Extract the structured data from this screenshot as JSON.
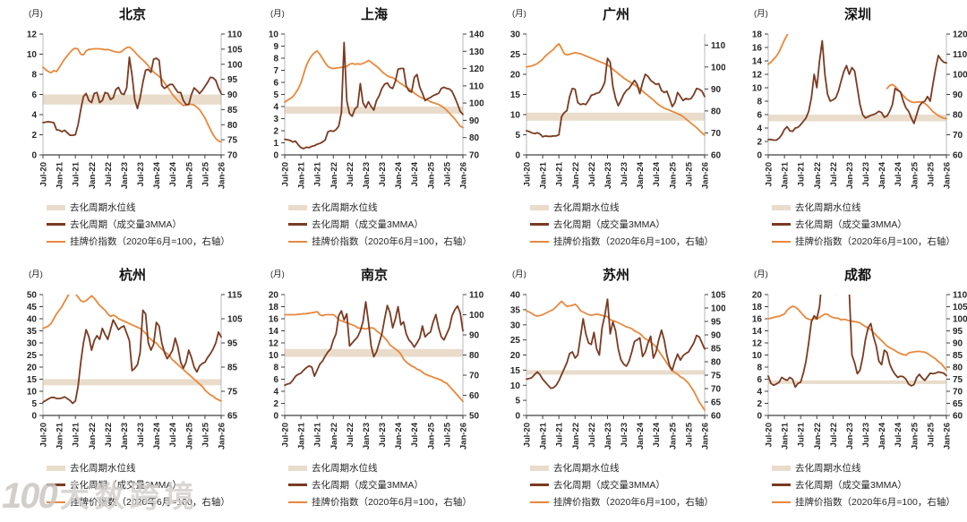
{
  "unit_label": "(月)",
  "colors": {
    "background": "#ffffff",
    "cycle_line": "#7a3b22",
    "price_line": "#e8883c",
    "band": "#e9dccb",
    "axis_text": "#262626",
    "axis_line": "#b9b9b9",
    "baseline": "#404040"
  },
  "legend": {
    "band": "去化周期水位线",
    "cycle": "去化周期（成交量3MMA）",
    "price": "挂牌价指数（2020年6月=100，右轴）"
  },
  "watermark": {
    "logo": "100",
    "text": "大数跨境"
  },
  "x_axis": {
    "tick_labels": [
      "Jul-20",
      "Jan-21",
      "Jul-21",
      "Jan-22",
      "Jul-22",
      "Jan-23",
      "Jul-23",
      "Jan-24",
      "Jul-24",
      "Jan-25",
      "Jul-25",
      "Jan-26"
    ],
    "tick_months": [
      0,
      6,
      12,
      18,
      24,
      30,
      36,
      42,
      48,
      54,
      60,
      66
    ],
    "total_months": 66
  },
  "chart_data": [
    {
      "id": "beijing",
      "city": "北京",
      "type": "line",
      "left_axis": {
        "min": 0,
        "max": 12,
        "step": 2
      },
      "right_axis": {
        "min": 70,
        "max": 110,
        "step": 5,
        "scale_max": 110
      },
      "band": [
        5,
        6
      ],
      "cycle": [
        3.2,
        3.25,
        3.3,
        3.25,
        3.2,
        2.5,
        2.45,
        2.3,
        2.45,
        2.2,
        1.95,
        1.95,
        2.0,
        3.0,
        4.5,
        5.8,
        6.1,
        5.4,
        5.2,
        6.1,
        6.2,
        5.2,
        5.4,
        6.2,
        6.1,
        5.5,
        5.65,
        6.5,
        6.7,
        6.1,
        6.0,
        6.65,
        9.7,
        7.9,
        5.5,
        4.6,
        5.65,
        7.2,
        8.4,
        8.5,
        8.2,
        9.5,
        9.6,
        9.4,
        6.9,
        6.6,
        6.8,
        7.0,
        7.0,
        6.6,
        6.2,
        6.2,
        5.4,
        5.0,
        5.0,
        6.0,
        6.65,
        6.4,
        6.1,
        6.4,
        6.8,
        7.2,
        7.7,
        7.65,
        7.4,
        6.65,
        6.1
      ],
      "price": [
        99,
        98.2,
        97.6,
        97.2,
        97.9,
        97.6,
        98.9,
        100.3,
        101.7,
        102.8,
        103.9,
        104.9,
        105.3,
        105,
        103.3,
        103.1,
        104.4,
        104.9,
        105,
        105.1,
        105.1,
        105.1,
        105,
        104.8,
        104.9,
        104.6,
        104.3,
        104.1,
        103.9,
        104.1,
        104.9,
        105.5,
        105.7,
        105,
        104.1,
        103.1,
        102.2,
        101.4,
        100.5,
        99.5,
        98.4,
        97.4,
        96.7,
        96,
        95.1,
        93.8,
        92.7,
        91.3,
        90,
        88.9,
        87.9,
        87.1,
        86.3,
        86.5,
        86.9,
        86.7,
        86.5,
        85.8,
        85,
        83.6,
        82.2,
        80.3,
        78.4,
        76.7,
        75.4,
        74.6,
        74.3
      ]
    },
    {
      "id": "shanghai",
      "city": "上海",
      "type": "line",
      "left_axis": {
        "min": 0,
        "max": 10,
        "step": 1
      },
      "right_axis": {
        "min": 70,
        "max": 140,
        "step": 10,
        "scale_max": 140
      },
      "band": [
        3.4,
        4.0
      ],
      "cycle": [
        1.3,
        1.25,
        1.2,
        1.07,
        1.14,
        0.83,
        0.6,
        0.52,
        0.64,
        0.6,
        0.71,
        0.76,
        0.88,
        0.95,
        1.07,
        1.24,
        1.9,
        2.0,
        1.95,
        2.1,
        2.38,
        3.5,
        9.3,
        4.5,
        3.4,
        3.2,
        3.8,
        4.0,
        5.9,
        4.3,
        3.9,
        4.4,
        4.0,
        3.7,
        4.5,
        4.9,
        5.5,
        5.85,
        5.95,
        5.6,
        5.5,
        6.1,
        7.1,
        7.15,
        7.15,
        5.7,
        5.3,
        5.2,
        6.4,
        6.65,
        5.6,
        5.1,
        4.5,
        4.65,
        4.75,
        4.9,
        5.0,
        5.1,
        5.5,
        5.6,
        5.5,
        5.45,
        5.25,
        4.75,
        4.2,
        3.6,
        3.35
      ],
      "price": [
        100.5,
        101.7,
        102.5,
        103.7,
        105.8,
        108.3,
        111.7,
        116.7,
        121.7,
        125,
        127.5,
        129.2,
        130.2,
        128.3,
        125.8,
        123.3,
        121.3,
        120.3,
        120,
        120.3,
        120.5,
        120.7,
        120.8,
        121.3,
        122.5,
        123,
        122.5,
        122.8,
        122.5,
        123,
        123.7,
        124.7,
        123.7,
        122.5,
        121.3,
        120,
        118.3,
        117,
        115.8,
        115,
        114.7,
        113.7,
        112.5,
        111.3,
        110.3,
        109.2,
        108.3,
        107,
        105.8,
        104.7,
        103.7,
        102.8,
        102.2,
        101.7,
        100.8,
        100.3,
        99.7,
        99.2,
        98.3,
        97.3,
        95.8,
        94.2,
        92.5,
        90.8,
        88.7,
        86.7,
        85.8
      ]
    },
    {
      "id": "guangzhou",
      "city": "广州",
      "type": "line",
      "left_axis": {
        "min": 0,
        "max": 30,
        "step": 5
      },
      "right_axis": {
        "min": 60,
        "max": 110,
        "step": 10,
        "scale_max": 115
      },
      "band": [
        8.5,
        10.5
      ],
      "cycle": [
        6.0,
        5.8,
        5.5,
        5.3,
        5.5,
        5.2,
        4.5,
        4.7,
        4.6,
        4.6,
        4.7,
        4.7,
        5.0,
        9.5,
        10.5,
        11.0,
        14.5,
        16.5,
        16.3,
        13.0,
        12.5,
        12.7,
        12.5,
        13.5,
        14.8,
        15.0,
        15.3,
        15.5,
        16.5,
        18.0,
        24.0,
        23.0,
        17.0,
        14.0,
        12.2,
        13.5,
        15.0,
        16.0,
        16.5,
        17.5,
        18.5,
        17.5,
        15.2,
        18.0,
        20.0,
        19.5,
        18.5,
        18.0,
        17.5,
        17.7,
        16.0,
        15.5,
        15.8,
        14.0,
        12.0,
        13.0,
        15.5,
        14.5,
        13.5,
        14.0,
        13.8,
        14.0,
        15.0,
        16.5,
        16.3,
        15.8,
        14.5
      ],
      "price": [
        100,
        100.3,
        100.5,
        101,
        101.5,
        102.5,
        103.5,
        105,
        106,
        107,
        108,
        109.5,
        110.5,
        108.5,
        106,
        105.5,
        105.8,
        106.2,
        106.5,
        106.3,
        106,
        105.5,
        105,
        104.5,
        104,
        103.5,
        103,
        102.5,
        102,
        101.5,
        101,
        100,
        99,
        98,
        97,
        96,
        95,
        94.2,
        93.4,
        92.6,
        91.8,
        91,
        90.2,
        89,
        88,
        87,
        86,
        85,
        83.8,
        82.8,
        82,
        81.3,
        80.8,
        80.3,
        79.8,
        79.3,
        78.8,
        78.2,
        77.4,
        76.4,
        75.4,
        74.4,
        73.4,
        72.4,
        71.2,
        70,
        69
      ]
    },
    {
      "id": "shenzhen",
      "city": "深圳",
      "type": "line",
      "left_axis": {
        "min": 0,
        "max": 18,
        "step": 2
      },
      "right_axis": {
        "min": 60,
        "max": 120,
        "step": 10,
        "scale_max": 120
      },
      "band": [
        5,
        6
      ],
      "cycle": [
        2.3,
        2.3,
        2.2,
        2.2,
        2.5,
        3.0,
        3.8,
        4.2,
        3.6,
        3.5,
        4.0,
        4.1,
        4.5,
        5.0,
        5.5,
        6.5,
        8.5,
        12.0,
        10.0,
        14.0,
        17.0,
        12.0,
        9.0,
        8.0,
        8.2,
        8.5,
        9.5,
        11.0,
        12.4,
        13.3,
        12.0,
        13.0,
        12.5,
        10.0,
        7.5,
        6.0,
        5.5,
        5.7,
        5.9,
        6.0,
        6.2,
        6.5,
        6.3,
        5.6,
        5.8,
        6.5,
        7.5,
        9.9,
        9.6,
        9.4,
        8.0,
        7.0,
        6.5,
        5.5,
        4.7,
        6.0,
        7.3,
        7.8,
        8.0,
        8.7,
        8.0,
        10.5,
        12.8,
        14.8,
        14.2,
        13.8,
        13.7
      ],
      "price": [
        105,
        106,
        107.5,
        109,
        111,
        114,
        117,
        119.5,
        122,
        null,
        null,
        null,
        null,
        null,
        null,
        null,
        null,
        null,
        null,
        null,
        null,
        null,
        null,
        null,
        null,
        null,
        null,
        null,
        null,
        null,
        null,
        null,
        null,
        null,
        null,
        null,
        null,
        null,
        null,
        null,
        null,
        null,
        null,
        null,
        93,
        94.5,
        95,
        94,
        92.5,
        91,
        89.5,
        88,
        87,
        86.3,
        86,
        86.2,
        86.3,
        86.2,
        85.5,
        84.5,
        83,
        81.5,
        80.5,
        79.5,
        78.8,
        78.2,
        78
      ]
    },
    {
      "id": "hangzhou",
      "city": "杭州",
      "type": "line",
      "left_axis": {
        "min": 0,
        "max": 50,
        "step": 5
      },
      "right_axis": {
        "min": 65,
        "max": 115,
        "step": 10,
        "scale_max": 115
      },
      "band": [
        12.5,
        15
      ],
      "cycle": [
        5.5,
        6.2,
        6.8,
        7.4,
        7.5,
        7.0,
        7.0,
        7.2,
        7.7,
        7.0,
        6.2,
        5.0,
        6.0,
        12.0,
        22.0,
        30.0,
        35.5,
        32.5,
        27.0,
        31.0,
        33.0,
        31.5,
        36.0,
        33.5,
        31.5,
        35.5,
        39.5,
        37.5,
        35.5,
        36.5,
        37.0,
        34.0,
        31.0,
        18.5,
        19.5,
        21.0,
        26.0,
        43.5,
        42.0,
        30.0,
        27.0,
        29.5,
        38.5,
        37.0,
        30.0,
        26.0,
        23.5,
        25.0,
        27.0,
        32.0,
        28.0,
        22.0,
        19.5,
        22.0,
        27.0,
        24.0,
        20.0,
        18.0,
        20.5,
        21.5,
        22.0,
        24.0,
        25.5,
        27.5,
        30.0,
        34.5,
        32.5
      ],
      "price": [
        101,
        101.5,
        102,
        103,
        105,
        107,
        108.5,
        110,
        112,
        114,
        116,
        116.5,
        115.5,
        114,
        112.5,
        112,
        112.5,
        113.5,
        114.5,
        113.5,
        112,
        110.5,
        109.5,
        108.5,
        107,
        106,
        106.5,
        106,
        105,
        104.5,
        104,
        103.5,
        103,
        102.5,
        102,
        101.5,
        101,
        100,
        99,
        97.5,
        96.5,
        95.5,
        95,
        93.5,
        92.5,
        91.5,
        90.5,
        89.5,
        88,
        87,
        86,
        85,
        84,
        83,
        82,
        81,
        80,
        79,
        78,
        77,
        75.5,
        74.5,
        73.5,
        73,
        72,
        71.5,
        71
      ]
    },
    {
      "id": "nanjing",
      "city": "南京",
      "type": "line",
      "left_axis": {
        "min": 0,
        "max": 20,
        "step": 2
      },
      "right_axis": {
        "min": 50,
        "max": 110,
        "step": 10,
        "scale_max": 110
      },
      "band": [
        9.7,
        11
      ],
      "cycle": [
        5.0,
        5.2,
        5.3,
        5.8,
        6.5,
        6.8,
        7.0,
        7.5,
        7.9,
        8.2,
        8.0,
        6.5,
        7.5,
        8.5,
        9.0,
        9.8,
        10.5,
        11.0,
        12.5,
        13.5,
        16.5,
        17.3,
        15.8,
        16.8,
        11.5,
        12.0,
        12.5,
        13.0,
        14.0,
        15.5,
        18.8,
        15.5,
        11.5,
        9.7,
        10.5,
        12.0,
        13.5,
        16.0,
        18.2,
        17.0,
        14.5,
        16.0,
        18.0,
        15.0,
        15.5,
        13.5,
        12.5,
        12.0,
        11.3,
        12.0,
        12.8,
        14.8,
        13.0,
        13.5,
        13.8,
        15.5,
        16.7,
        14.5,
        13.0,
        12.5,
        13.5,
        14.5,
        16.5,
        17.5,
        18.1,
        17.0,
        14.0
      ],
      "price": [
        100,
        100,
        100,
        100,
        100,
        100.2,
        100.3,
        100.5,
        100.5,
        100.8,
        101,
        101.2,
        101.5,
        100,
        99.5,
        100,
        100,
        100,
        100,
        99,
        97.5,
        97,
        96.5,
        96,
        95.5,
        95,
        94.5,
        93.5,
        93.3,
        93.2,
        93,
        93.3,
        93.5,
        93.3,
        92,
        91,
        90,
        88.5,
        87,
        85,
        84,
        83,
        82,
        80.5,
        78,
        76.5,
        75.5,
        74.5,
        74,
        73,
        72.5,
        71.5,
        70.5,
        70,
        69.5,
        69,
        68.5,
        68,
        67.5,
        66.5,
        66,
        64.5,
        63,
        61.5,
        60,
        58.5,
        57
      ]
    },
    {
      "id": "suzhou",
      "city": "苏州",
      "type": "line",
      "left_axis": {
        "min": 0,
        "max": 40,
        "step": 5
      },
      "right_axis": {
        "min": 60,
        "max": 105,
        "step": 5,
        "scale_max": 105
      },
      "band": [
        13.5,
        15
      ],
      "cycle": [
        12.0,
        12.2,
        12.5,
        13.5,
        14.4,
        13.5,
        12.0,
        11.0,
        10.0,
        9.0,
        9.2,
        10.0,
        11.5,
        13.5,
        15.5,
        17.5,
        20.5,
        21.0,
        19.0,
        20.0,
        26.0,
        32.0,
        27.0,
        24.0,
        23.5,
        27.5,
        22.0,
        20.0,
        29.0,
        33.0,
        38.5,
        27.0,
        31.0,
        28.0,
        22.0,
        18.5,
        17.0,
        16.3,
        18.0,
        21.0,
        24.5,
        25.0,
        25.7,
        19.5,
        21.0,
        24.0,
        26.2,
        19.0,
        21.0,
        25.0,
        28.2,
        25.0,
        20.0,
        16.5,
        15.0,
        18.0,
        20.3,
        18.3,
        19.8,
        20.5,
        21.0,
        22.5,
        24.0,
        26.5,
        26.0,
        24.0,
        22.0
      ],
      "price": [
        99,
        98.5,
        98,
        97.3,
        97,
        97.2,
        97.5,
        98,
        98.5,
        99,
        99.5,
        100.5,
        101.5,
        102.5,
        101.5,
        100.6,
        100.8,
        101,
        101.4,
        100.5,
        99,
        98.5,
        98,
        97.5,
        97.3,
        97.5,
        97.7,
        97.5,
        97.3,
        97,
        96.8,
        95.7,
        95.3,
        95,
        94.5,
        94,
        93.5,
        93,
        92.7,
        92.3,
        91.5,
        91,
        90.5,
        89.5,
        88.5,
        88,
        87.3,
        86.5,
        85.5,
        84,
        82.5,
        81,
        79.5,
        78,
        76.5,
        76,
        75.3,
        74.4,
        73.9,
        73,
        72,
        70.5,
        69,
        67,
        65,
        63.5,
        62
      ]
    },
    {
      "id": "chengdu",
      "city": "成都",
      "type": "line",
      "left_axis": {
        "min": 0,
        "max": 20,
        "step": 2
      },
      "right_axis": {
        "min": 60,
        "max": 110,
        "step": 5,
        "scale_max": 110
      },
      "band": [
        5.2,
        5.8
      ],
      "cycle": [
        6.5,
        5.3,
        5.0,
        5.2,
        5.5,
        6.3,
        6.0,
        5.8,
        6.3,
        6.0,
        4.7,
        5.3,
        5.5,
        7.0,
        9.0,
        12.0,
        15.5,
        16.5,
        16.0,
        18.0,
        23.0,
        26.0,
        25.0,
        22.0,
        20.8,
        20.1,
        21.5,
        25.0,
        26.0,
        24.0,
        20.5,
        10.0,
        8.7,
        6.9,
        7.5,
        9.6,
        12.5,
        14.5,
        15.2,
        13.0,
        11.5,
        9.0,
        8.4,
        10.8,
        10.4,
        8.5,
        7.5,
        6.8,
        6.3,
        6.5,
        6.4,
        6.0,
        5.2,
        4.9,
        5.1,
        6.3,
        6.8,
        6.2,
        5.8,
        6.4,
        7.0,
        6.9,
        7.0,
        7.2,
        7.1,
        7.0,
        6.6
      ],
      "price": [
        100,
        100.2,
        100.5,
        100.8,
        101,
        101.5,
        102,
        103.5,
        104.5,
        105.2,
        104.8,
        104,
        102.7,
        101.5,
        100.3,
        99.8,
        99.5,
        100.2,
        99.8,
        100.5,
        101.3,
        102,
        101.8,
        101,
        100.5,
        100.3,
        100.2,
        99.5,
        99.8,
        99.5,
        99.2,
        99,
        98.8,
        98.6,
        98.3,
        97.5,
        96.8,
        96.2,
        95.5,
        94.3,
        93.2,
        92,
        91,
        89.8,
        88.7,
        88,
        87.5,
        86.8,
        86.1,
        85.6,
        85.2,
        84.9,
        85.8,
        86.1,
        86.3,
        86.5,
        86.5,
        86.3,
        86.2,
        85.6,
        84.9,
        84.1,
        83.4,
        82.3,
        81.5,
        80.2,
        78.8
      ]
    }
  ]
}
